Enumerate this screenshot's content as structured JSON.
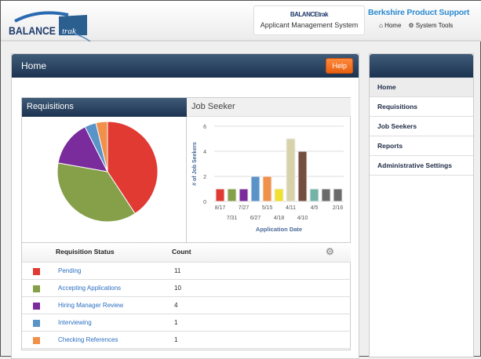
{
  "header": {
    "logo_text": "BALANCEtrak",
    "product_logo": "BALANCEtrak",
    "product_name": "Applicant Management System",
    "company": "Berkshire Product Support",
    "links": [
      {
        "label": "Home",
        "icon": "home-icon"
      },
      {
        "label": "System Tools",
        "icon": "gear-icon"
      }
    ]
  },
  "main": {
    "title": "Home",
    "help_label": "Help",
    "requisitions": {
      "title": "Requisitions",
      "table_headers": [
        "Requisition Status",
        "Count"
      ],
      "rows": [
        {
          "label": "Pending",
          "count": "11",
          "color": "#e03a33"
        },
        {
          "label": "Accepting Applications",
          "count": "10",
          "color": "#86a04a"
        },
        {
          "label": "Hiring Manager Review",
          "count": "4",
          "color": "#7a2b9c"
        },
        {
          "label": "Interviewing",
          "count": "1",
          "color": "#5a93c8"
        },
        {
          "label": "Checking References",
          "count": "1",
          "color": "#f0904a"
        }
      ]
    },
    "job_seeker": {
      "title": "Job Seeker"
    }
  },
  "chart_data": [
    {
      "type": "pie",
      "title": "Requisitions",
      "categories": [
        "Pending",
        "Accepting Applications",
        "Hiring Manager Review",
        "Interviewing",
        "Checking References"
      ],
      "values": [
        11,
        10,
        4,
        1,
        1
      ],
      "colors": [
        "#e03a33",
        "#86a04a",
        "#7a2b9c",
        "#5a93c8",
        "#f0904a"
      ]
    },
    {
      "type": "bar",
      "title": "Job Seeker",
      "xlabel": "Application Date",
      "ylabel": "# of Job Seekers",
      "ylim": [
        0,
        6
      ],
      "yticks": [
        "0",
        "2",
        "4",
        "6"
      ],
      "categories": [
        "8/17",
        "7/31",
        "7/27",
        "6/27",
        "5/15",
        "4/18",
        "4/11",
        "4/10",
        "4/5",
        "",
        "2/16"
      ],
      "values": [
        1,
        1,
        1,
        2,
        2,
        1,
        5,
        4,
        1,
        1,
        1
      ],
      "colors": [
        "#e03a33",
        "#86a04a",
        "#7a2b9c",
        "#5a93c8",
        "#f0904a",
        "#f0e030",
        "#d8d2aa",
        "#744e3e",
        "#74b4a8",
        "#6a6a6a",
        "#6a6a6a"
      ],
      "grid": true
    }
  ],
  "sidebar": {
    "items": [
      "Home",
      "Requisitions",
      "Job Seekers",
      "Reports",
      "Administrative Settings"
    ]
  }
}
